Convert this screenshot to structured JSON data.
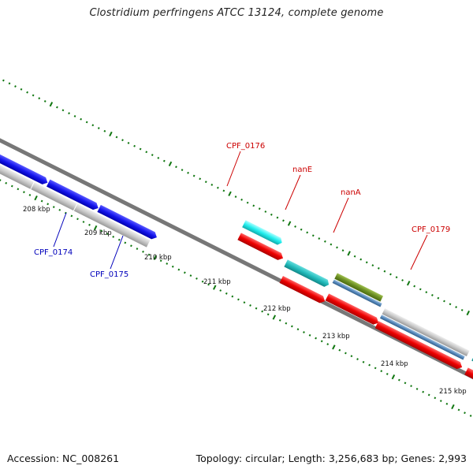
{
  "title": "Clostridium perfringens ATCC 13124, complete genome",
  "footer": {
    "accession": "Accession: NC_008261",
    "summary": "Topology: circular; Length: 3,256,683 bp; Genes: 2,993"
  },
  "ticks": [
    {
      "label": "208 kbp",
      "kbp": 208
    },
    {
      "label": "209 kbp",
      "kbp": 209
    },
    {
      "label": "210 kbp",
      "kbp": 210
    },
    {
      "label": "211 kbp",
      "kbp": 211
    },
    {
      "label": "212 kbp",
      "kbp": 212
    },
    {
      "label": "213 kbp",
      "kbp": 213
    },
    {
      "label": "214 kbp",
      "kbp": 214
    },
    {
      "label": "215 kbp",
      "kbp": 215
    }
  ],
  "genes": [
    {
      "name": "CPF_0174",
      "color": "#0000bb"
    },
    {
      "name": "CPF_0175",
      "color": "#0000bb"
    },
    {
      "name": "CPF_0176",
      "color": "#cc0000"
    },
    {
      "name": "nanE",
      "color": "#cc0000"
    },
    {
      "name": "nanA",
      "color": "#cc0000"
    },
    {
      "name": "CPF_0179",
      "color": "#cc0000"
    }
  ],
  "colors": {
    "backbone": "#777777",
    "tick": "#117711",
    "blue_feature": "#1515ee",
    "gray_feature": "#c8c8c8",
    "cyan_feature": "#22dddd",
    "teal_feature": "#22bbbb",
    "red_feature": "#ee0000",
    "olive_feature": "#6b8e23",
    "steel_feature": "#5588bb"
  }
}
